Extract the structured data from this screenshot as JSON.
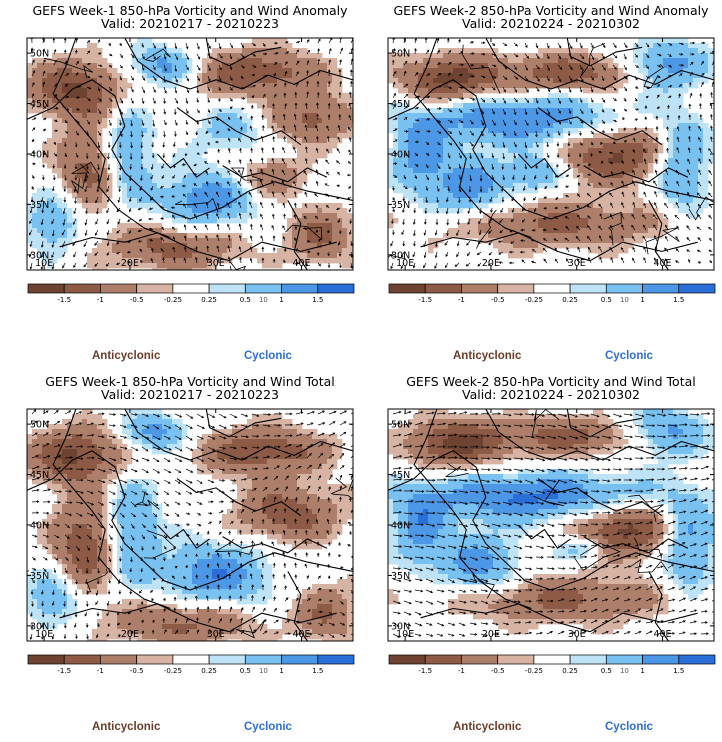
{
  "colors": {
    "anti_strong": "#6f4331",
    "anti_mid": "#8c5a45",
    "anti_light": "#ad7f6b",
    "anti_faint": "#d6b3a3",
    "neutral": "#ffffff",
    "cyc_faint": "#bfe3f6",
    "cyc_light": "#78c1f0",
    "cyc_mid": "#4c97e6",
    "cyc_strong": "#2a6fd8",
    "label_anti": "#6b3c2a",
    "label_cyc": "#2f6fd4"
  },
  "chart_data": [
    {
      "type": "heatmap",
      "title": "GEFS Week-1 850-hPa Vorticity and Wind Anomaly",
      "subtitle": "Valid: 20210217 - 20210223",
      "x_ticks": [
        "10E",
        "20E",
        "30E",
        "40E"
      ],
      "y_ticks": [
        "50N",
        "45N",
        "40N",
        "35N",
        "30N"
      ],
      "xlim": [
        8,
        46
      ],
      "ylim": [
        28.5,
        51.5
      ],
      "colorbar_ticks": [
        "-1.5",
        "-1",
        "-0.5",
        "-0.25",
        "0.25",
        "0.5",
        "1",
        "1.5"
      ],
      "colorbar_scale": "10",
      "legend_anticyclonic": "Anticyclonic",
      "legend_cyclonic": "Cyclonic"
    },
    {
      "type": "heatmap",
      "title": "GEFS Week-2 850-hPa Vorticity and Wind Anomaly",
      "subtitle": "Valid: 20210224 - 20210302",
      "x_ticks": [
        "10E",
        "20E",
        "30E",
        "40E"
      ],
      "y_ticks": [
        "50N",
        "45N",
        "40N",
        "35N",
        "30N"
      ],
      "xlim": [
        8,
        46
      ],
      "ylim": [
        28.5,
        51.5
      ],
      "colorbar_ticks": [
        "-1.5",
        "-1",
        "-0.5",
        "-0.25",
        "0.25",
        "0.5",
        "1",
        "1.5"
      ],
      "colorbar_scale": "10",
      "legend_anticyclonic": "Anticyclonic",
      "legend_cyclonic": "Cyclonic"
    },
    {
      "type": "heatmap",
      "title": "GEFS Week-1 850-hPa Vorticity and Wind Total",
      "subtitle": "Valid: 20210217 - 20210223",
      "x_ticks": [
        "10E",
        "20E",
        "30E",
        "40E"
      ],
      "y_ticks": [
        "50N",
        "45N",
        "40N",
        "35N",
        "30N"
      ],
      "xlim": [
        8,
        46
      ],
      "ylim": [
        28.5,
        51.5
      ],
      "colorbar_ticks": [
        "-1.5",
        "-1",
        "-0.5",
        "-0.25",
        "0.25",
        "0.5",
        "1",
        "1.5"
      ],
      "colorbar_scale": "10",
      "legend_anticyclonic": "Anticyclonic",
      "legend_cyclonic": "Cyclonic"
    },
    {
      "type": "heatmap",
      "title": "GEFS Week-2 850-hPa Vorticity and Wind Total",
      "subtitle": "Valid: 20210224 - 20210302",
      "x_ticks": [
        "10E",
        "20E",
        "30E",
        "40E"
      ],
      "y_ticks": [
        "50N",
        "45N",
        "40N",
        "35N",
        "30N"
      ],
      "xlim": [
        8,
        46
      ],
      "ylim": [
        28.5,
        51.5
      ],
      "colorbar_ticks": [
        "-1.5",
        "-1",
        "-0.5",
        "-0.25",
        "0.25",
        "0.5",
        "1",
        "1.5"
      ],
      "colorbar_scale": "10",
      "legend_anticyclonic": "Anticyclonic",
      "legend_cyclonic": "Cyclonic"
    }
  ]
}
